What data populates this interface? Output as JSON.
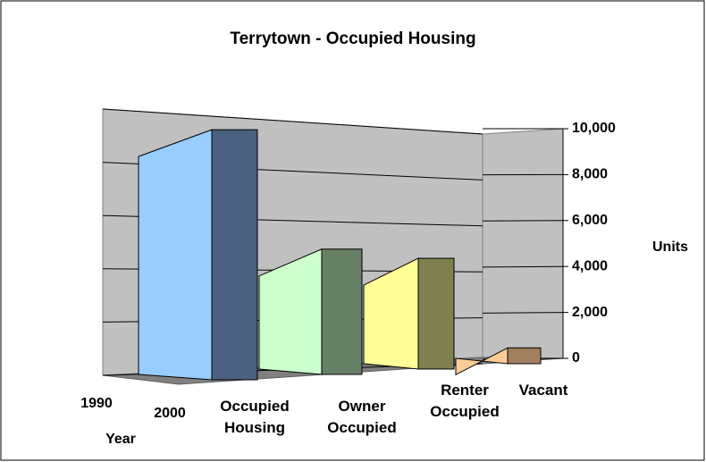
{
  "chart_data": {
    "type": "bar3d",
    "title": "Terrytown - Occupied Housing",
    "categories": [
      "Occupied Housing",
      "Owner Occupied",
      "Renter Occupied",
      "Vacant"
    ],
    "values": [
      9800,
      4600,
      4200,
      300
    ],
    "colors": [
      "#99ccff",
      "#ccffcc",
      "#ffff99",
      "#ffcc99"
    ],
    "side_colors": [
      "#4a6280",
      "#668066",
      "#807f4f",
      "#a0805f"
    ],
    "ylim": [
      0,
      10000
    ],
    "yticks": [
      0,
      {
        "value": 2000,
        "label": "2,000"
      },
      {
        "value": 4000,
        "label": "4,000"
      },
      {
        "value": 6000,
        "label": "6,000"
      },
      {
        "value": 8000,
        "label": "8,000"
      },
      {
        "value": 10000,
        "label": "10,000"
      }
    ],
    "y_label": "Units",
    "depth_categories": [
      "1990",
      "2000"
    ],
    "depth_label": "Year",
    "grid": true
  }
}
